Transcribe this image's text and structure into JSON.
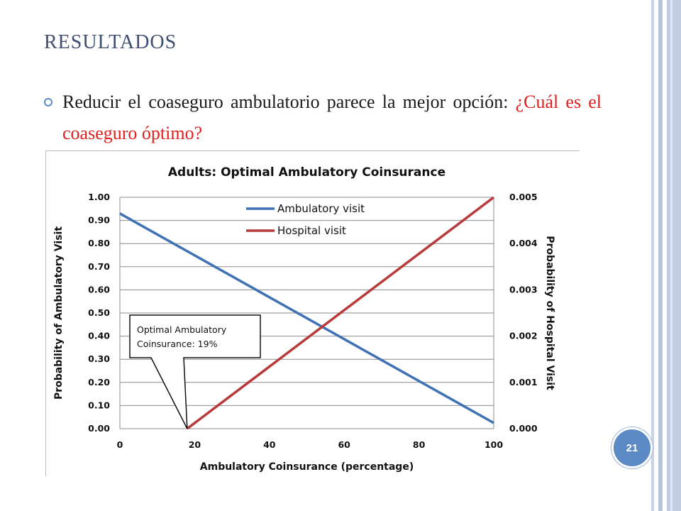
{
  "slide": {
    "title": "RESULTADOS",
    "bullet": {
      "text": "Reducir el coaseguro ambulatorio parece la mejor opción: ",
      "highlight": "¿Cuál es el coaseguro óptimo?"
    },
    "page_number": "21"
  },
  "colors": {
    "ambulatory": "#3f72b5",
    "hospital": "#b83a3a",
    "title": "#3f4f73",
    "highlight": "#e0201f",
    "accent": "#5b8ac4"
  },
  "chart_data": {
    "type": "line",
    "title": "Adults: Optimal Ambulatory Coinsurance",
    "xlabel": "Ambulatory Coinsurance (percentage)",
    "ylabel": "Probability of Ambulatory Visit",
    "y2label": "Probability of Hospital Visit",
    "xlim": [
      0,
      100
    ],
    "ylim": [
      0,
      1.0
    ],
    "y2lim": [
      0,
      0.005
    ],
    "x_ticks": [
      "0",
      "20",
      "40",
      "60",
      "80",
      "100"
    ],
    "y_ticks": [
      "0.00",
      "0.10",
      "0.20",
      "0.30",
      "0.40",
      "0.50",
      "0.60",
      "0.70",
      "0.80",
      "0.90",
      "1.00"
    ],
    "y2_ticks": [
      "0.000",
      "0.001",
      "0.002",
      "0.003",
      "0.004",
      "0.005"
    ],
    "grid": true,
    "legend_position": "top-center",
    "series": [
      {
        "name": "Ambulatory visit",
        "axis": "left",
        "x": [
          0,
          100
        ],
        "y": [
          0.93,
          0.025
        ]
      },
      {
        "name": "Hospital visit",
        "axis": "right",
        "x": [
          18,
          100
        ],
        "y": [
          0.0,
          0.005
        ]
      }
    ],
    "annotation": {
      "lines": [
        "Optimal Ambulatory",
        "Coinsurance: 19%"
      ],
      "x": 18,
      "y": 0.0
    }
  }
}
